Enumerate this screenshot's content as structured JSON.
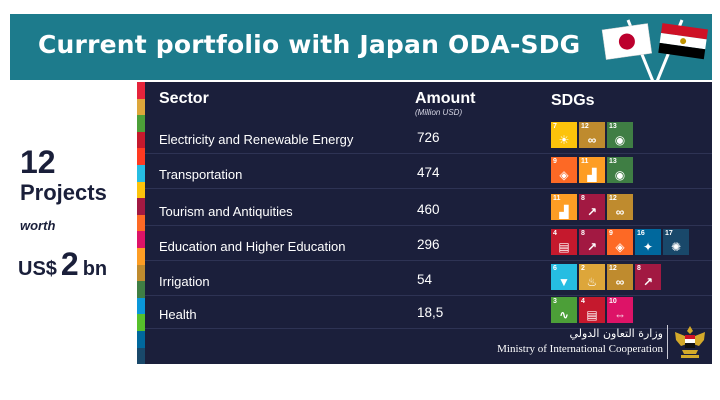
{
  "header": {
    "title": "Current portfolio with Japan ODA-SDG"
  },
  "summary": {
    "count": "12",
    "projects": "Projects",
    "worth": "worth",
    "currency": "US$",
    "amount": "2",
    "unit": "bn"
  },
  "table": {
    "col_sector": "Sector",
    "col_amount": "Amount",
    "col_amount_sub": "(Million USD)",
    "col_sdgs": "SDGs",
    "rows": [
      {
        "sector": "Electricity and Renewable Energy",
        "amount": "726",
        "sdgs": [
          {
            "n": "7",
            "color": "#fcc30b",
            "glyph": "☀"
          },
          {
            "n": "12",
            "color": "#bf8b2e",
            "glyph": "∞"
          },
          {
            "n": "13",
            "color": "#3f7e44",
            "glyph": "◉"
          }
        ]
      },
      {
        "sector": "Transportation",
        "amount": "474",
        "sdgs": [
          {
            "n": "9",
            "color": "#fd6925",
            "glyph": "◈"
          },
          {
            "n": "11",
            "color": "#fd9d24",
            "glyph": "▟"
          },
          {
            "n": "13",
            "color": "#3f7e44",
            "glyph": "◉"
          }
        ]
      },
      {
        "sector": "Tourism and Antiquities",
        "amount": "460",
        "sdgs": [
          {
            "n": "11",
            "color": "#fd9d24",
            "glyph": "▟"
          },
          {
            "n": "8",
            "color": "#a21942",
            "glyph": "↗"
          },
          {
            "n": "12",
            "color": "#bf8b2e",
            "glyph": "∞"
          }
        ]
      },
      {
        "sector": "Education and Higher Education",
        "amount": "296",
        "sdgs": [
          {
            "n": "4",
            "color": "#c5192d",
            "glyph": "▤"
          },
          {
            "n": "8",
            "color": "#a21942",
            "glyph": "↗"
          },
          {
            "n": "9",
            "color": "#fd6925",
            "glyph": "◈"
          },
          {
            "n": "16",
            "color": "#00689d",
            "glyph": "✦"
          },
          {
            "n": "17",
            "color": "#19486a",
            "glyph": "✺"
          }
        ]
      },
      {
        "sector": "Irrigation",
        "amount": "54",
        "sdgs": [
          {
            "n": "6",
            "color": "#26bde2",
            "glyph": "▼"
          },
          {
            "n": "2",
            "color": "#dda63a",
            "glyph": "♨"
          },
          {
            "n": "12",
            "color": "#bf8b2e",
            "glyph": "∞"
          },
          {
            "n": "8",
            "color": "#a21942",
            "glyph": "↗"
          }
        ]
      },
      {
        "sector": "Health",
        "amount": "18,5",
        "sdgs": [
          {
            "n": "3",
            "color": "#4c9f38",
            "glyph": "∿"
          },
          {
            "n": "4",
            "color": "#c5192d",
            "glyph": "▤"
          },
          {
            "n": "10",
            "color": "#dd1367",
            "glyph": "⇔"
          }
        ]
      }
    ]
  },
  "footer": {
    "ministry_ar": "وزارة التعاون الدولي",
    "ministry_en": "Ministry of International Cooperation"
  },
  "stripe_colors": [
    "#e5243b",
    "#dda63a",
    "#4c9f38",
    "#c5192d",
    "#ff3a21",
    "#26bde2",
    "#fcc30b",
    "#a21942",
    "#fd6925",
    "#dd1367",
    "#fd9d24",
    "#bf8b2e",
    "#3f7e44",
    "#0a97d9",
    "#56c02b",
    "#00689d",
    "#19486a"
  ]
}
